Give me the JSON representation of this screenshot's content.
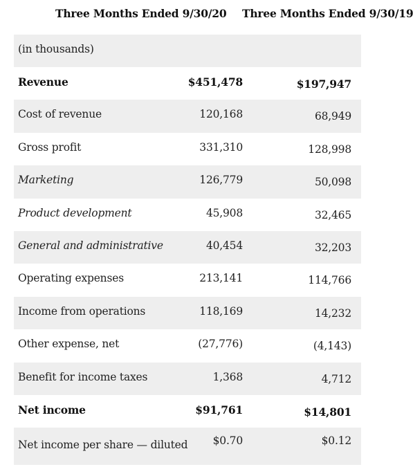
{
  "header": {
    "col1": "Three Months Ended 9/30/20",
    "col2": "Three Months Ended 9/30/19"
  },
  "units": "(in thousands)",
  "rows": [
    {
      "label": "Revenue",
      "v1": "$451,478",
      "v2": "$197,947"
    },
    {
      "label": "Cost of revenue",
      "v1": "120,168",
      "v2": "68,949"
    },
    {
      "label": "Gross profit",
      "v1": "331,310",
      "v2": "128,998"
    },
    {
      "label": "Marketing",
      "v1": "126,779",
      "v2": "50,098"
    },
    {
      "label": "Product development",
      "v1": "45,908",
      "v2": "32,465"
    },
    {
      "label": "General and administrative",
      "v1": "40,454",
      "v2": "32,203"
    },
    {
      "label": "Operating expenses",
      "v1": "213,141",
      "v2": "114,766"
    },
    {
      "label": "Income from operations",
      "v1": "118,169",
      "v2": "14,232"
    },
    {
      "label": "Other expense, net",
      "v1": "(27,776)",
      "v2": "(4,143)"
    },
    {
      "label": "Benefit for income taxes",
      "v1": "1,368",
      "v2": "4,712"
    },
    {
      "label": "Net income",
      "v1": "$91,761",
      "v2": "$14,801"
    },
    {
      "label": "Net income per share — diluted",
      "v1": "$0.70",
      "v2": "$0.12"
    }
  ]
}
